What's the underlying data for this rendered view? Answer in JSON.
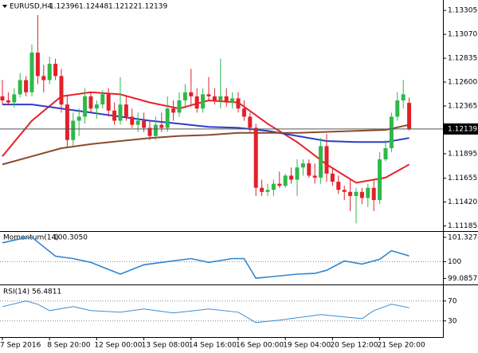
{
  "chart_data": [
    {
      "type": "candlestick",
      "symbol": "EURUSD,H4",
      "categories": [
        "7 Sep 2016",
        null,
        null,
        null,
        null,
        null,
        null,
        null,
        "8 Sep 20:00",
        null,
        null,
        null,
        null,
        null,
        null,
        null,
        "12 Sep 00:00",
        null,
        null,
        null,
        null,
        null,
        null,
        null,
        "13 Sep 08:00",
        null,
        null,
        null,
        null,
        null,
        null,
        null,
        "14 Sep 16:00",
        null,
        null,
        null,
        null,
        null,
        null,
        null,
        "16 Sep 00:00",
        null,
        null,
        null,
        null,
        null,
        null,
        null,
        "19 Sep 04:00",
        null,
        null,
        null,
        null,
        null,
        null,
        null,
        "20 Sep 12:00",
        null,
        null,
        null,
        null,
        null,
        null,
        null,
        "21 Sep 20:00",
        null,
        null,
        null,
        null,
        null
      ],
      "open": [
        1.1246,
        1.1242,
        1.124,
        1.1248,
        1.1262,
        1.125,
        1.1289,
        1.1266,
        1.1262,
        1.1278,
        1.1266,
        1.1238,
        1.1203,
        1.1222,
        1.1226,
        1.1246,
        1.1234,
        1.1238,
        1.1248,
        1.1232,
        1.1222,
        1.1238,
        1.1226,
        1.1218,
        1.1222,
        1.1215,
        1.1207,
        1.1218,
        1.1215,
        1.1234,
        1.123,
        1.1242,
        1.125,
        1.1246,
        1.1234,
        1.1248,
        1.1246,
        1.1242,
        1.1246,
        1.124,
        1.1244,
        1.1234,
        1.1226,
        1.1215,
        1.1156,
        1.1152,
        1.1154,
        1.116,
        1.1158,
        1.1168,
        1.1164,
        1.1176,
        1.118,
        1.1168,
        1.1166,
        1.1197,
        1.117,
        1.1162,
        1.1154,
        1.1152,
        1.1148,
        1.1152,
        1.1146,
        1.1156,
        1.1144,
        1.1184,
        1.1195,
        1.1226,
        1.1242,
        1.12396
      ],
      "high": [
        1.1262,
        1.125,
        1.1254,
        1.1269,
        1.1266,
        1.1297,
        1.1326,
        1.1277,
        1.1285,
        1.1283,
        1.1273,
        1.1246,
        1.123,
        1.1234,
        1.1254,
        1.125,
        1.1242,
        1.1252,
        1.1254,
        1.124,
        1.1265,
        1.1246,
        1.1234,
        1.123,
        1.123,
        1.1222,
        1.1226,
        1.123,
        1.1246,
        1.1242,
        1.125,
        1.1258,
        1.1273,
        1.1254,
        1.1254,
        1.1265,
        1.1254,
        1.1283,
        1.1254,
        1.125,
        1.125,
        1.1242,
        1.123,
        1.1219,
        1.1164,
        1.116,
        1.1164,
        1.1172,
        1.117,
        1.1176,
        1.1184,
        1.1184,
        1.1184,
        1.118,
        1.1205,
        1.1209,
        1.1176,
        1.1168,
        1.1158,
        1.1164,
        1.1156,
        1.1156,
        1.116,
        1.1164,
        1.1191,
        1.1203,
        1.123,
        1.125,
        1.1262,
        1.12448
      ],
      "low": [
        1.1238,
        1.1237,
        1.1235,
        1.1245,
        1.1246,
        1.1246,
        1.1258,
        1.125,
        1.1258,
        1.1262,
        1.123,
        1.1195,
        1.1197,
        1.1207,
        1.1219,
        1.123,
        1.1224,
        1.1234,
        1.1226,
        1.1218,
        1.1218,
        1.1222,
        1.1215,
        1.1211,
        1.1211,
        1.1203,
        1.1203,
        1.1211,
        1.1211,
        1.1222,
        1.1226,
        1.1234,
        1.1238,
        1.123,
        1.123,
        1.1242,
        1.1238,
        1.1234,
        1.1236,
        1.1234,
        1.123,
        1.1222,
        1.1211,
        1.1148,
        1.1148,
        1.1148,
        1.1148,
        1.1156,
        1.1156,
        1.116,
        1.1148,
        1.1168,
        1.1166,
        1.116,
        1.116,
        1.1162,
        1.1158,
        1.115,
        1.1144,
        1.1133,
        1.1121,
        1.114,
        1.1137,
        1.1133,
        1.114,
        1.1182,
        1.1191,
        1.1222,
        1.1234,
        1.12122
      ],
      "close": [
        1.1242,
        1.124,
        1.1248,
        1.1262,
        1.125,
        1.1289,
        1.1266,
        1.1262,
        1.1278,
        1.1266,
        1.1238,
        1.1203,
        1.1222,
        1.1226,
        1.1246,
        1.1234,
        1.1238,
        1.1248,
        1.1232,
        1.1222,
        1.1238,
        1.1226,
        1.1218,
        1.1222,
        1.1215,
        1.1207,
        1.1218,
        1.1215,
        1.1234,
        1.123,
        1.1242,
        1.125,
        1.1246,
        1.1234,
        1.1248,
        1.1246,
        1.1242,
        1.1246,
        1.124,
        1.1244,
        1.1234,
        1.1226,
        1.1215,
        1.1156,
        1.1152,
        1.1154,
        1.116,
        1.1158,
        1.1168,
        1.1164,
        1.1176,
        1.118,
        1.1168,
        1.1166,
        1.1197,
        1.117,
        1.1162,
        1.1154,
        1.1152,
        1.1148,
        1.1152,
        1.1146,
        1.1156,
        1.1144,
        1.1184,
        1.1195,
        1.1226,
        1.1242,
        1.1248,
        1.12139
      ],
      "up_color": "#2eb84a",
      "down_color": "#e3202b",
      "series": [
        {
          "color": "#e8212a",
          "x": [
            0,
            5,
            10,
            15,
            20,
            25,
            30,
            35,
            40,
            45,
            50,
            55,
            60,
            65,
            69
          ],
          "values": [
            1.1187,
            1.1222,
            1.1246,
            1.125,
            1.1248,
            1.124,
            1.1234,
            1.1242,
            1.124,
            1.1219,
            1.1201,
            1.1179,
            1.1161,
            1.1166,
            1.1179
          ]
        },
        {
          "color": "#2b3ec8",
          "x": [
            0,
            5,
            10,
            15,
            20,
            25,
            30,
            35,
            40,
            45,
            50,
            55,
            60,
            65,
            69
          ],
          "values": [
            1.1238,
            1.1238,
            1.1234,
            1.123,
            1.1226,
            1.1222,
            1.1219,
            1.1216,
            1.1215,
            1.1212,
            1.1207,
            1.1202,
            1.1201,
            1.1201,
            1.1205
          ]
        },
        {
          "color": "#8b4a2b",
          "x": [
            0,
            5,
            10,
            15,
            20,
            25,
            30,
            35,
            40,
            45,
            50,
            55,
            60,
            65,
            69
          ],
          "values": [
            1.1179,
            1.1187,
            1.1195,
            1.1199,
            1.1202,
            1.1205,
            1.1207,
            1.1208,
            1.121,
            1.121,
            1.121,
            1.1211,
            1.1212,
            1.1213,
            1.1218
          ]
        }
      ],
      "last_price": 1.12139,
      "ylim": [
        1.1115,
        1.134
      ],
      "yticks": [
        1.13305,
        {
          "value": 1.1307,
          "label": "1.13070"
        },
        1.12835,
        {
          "value": 1.126,
          "label": "1.12600"
        },
        1.12365,
        1.11895,
        1.11655,
        {
          "value": 1.1142,
          "label": "1.11420"
        },
        1.11185
      ]
    },
    {
      "type": "line",
      "title": "Momentum(14)",
      "last_value": {
        "value": 100.305,
        "label": "100.3050"
      },
      "color": "#2f86d0",
      "x": [
        0,
        3,
        5,
        9,
        12,
        15,
        20,
        24,
        27,
        32,
        35,
        39,
        41,
        43,
        46,
        50,
        53,
        55,
        58,
        61,
        64,
        66,
        69
      ],
      "values": [
        101.03,
        101.24,
        101.33,
        100.3,
        100.17,
        99.96,
        99.32,
        99.83,
        99.96,
        100.17,
        99.96,
        100.17,
        100.17,
        99.1,
        99.19,
        99.32,
        99.36,
        99.53,
        100.04,
        99.87,
        100.13,
        100.6,
        100.31
      ],
      "ylim": [
        98.8,
        101.58
      ],
      "yticks": [
        101.3274,
        100,
        99.0857
      ],
      "levels": [
        100
      ]
    },
    {
      "type": "line",
      "title": "RSI(14)",
      "last_value": 56.4811,
      "color": "#3a8fd6",
      "x": [
        0,
        4,
        6,
        8,
        12,
        15,
        20,
        24,
        29,
        35,
        40,
        43,
        47,
        51,
        54,
        58,
        61,
        63,
        66,
        69
      ],
      "values": [
        58.8,
        70,
        63.6,
        50.8,
        58.8,
        50.8,
        47.6,
        54,
        46,
        54,
        47.6,
        26.8,
        31.6,
        38,
        42.8,
        38,
        34.8,
        50.8,
        63.6,
        56.5
      ],
      "ylim": [
        0,
        100
      ],
      "yticks": [
        70,
        30
      ],
      "levels": [
        70,
        30
      ]
    }
  ]
}
